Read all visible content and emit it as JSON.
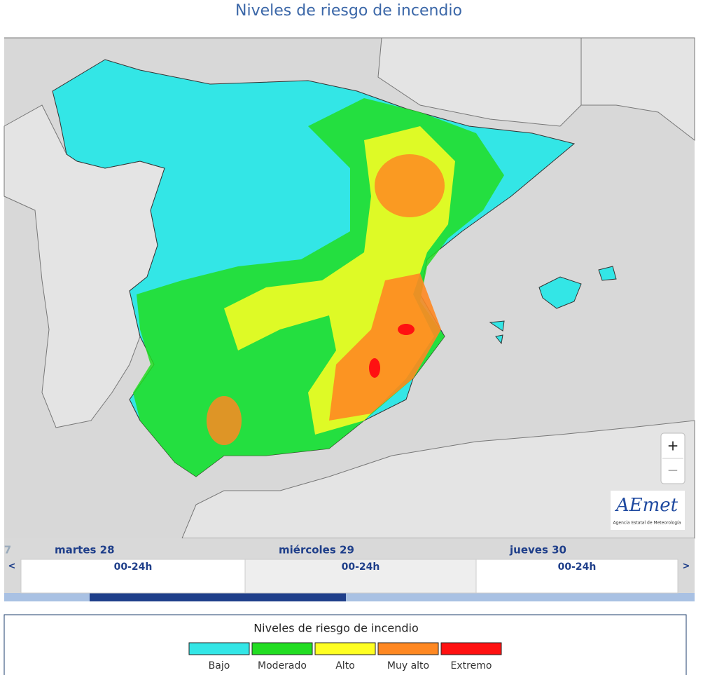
{
  "title": "Niveles de riesgo de incendio",
  "timeline": {
    "prev_day": "7",
    "prev": "<",
    "next": ">",
    "days": [
      {
        "day": "martes 28",
        "period": "00-24h"
      },
      {
        "day": "miércoles 29",
        "period": "00-24h"
      },
      {
        "day": "jueves 30",
        "period": "00-24h"
      }
    ]
  },
  "zoom": {
    "in": "+",
    "out": "−"
  },
  "logo": {
    "brand": "AEmet",
    "subtitle": "Agencia Estatal de Meteorología"
  },
  "legend": {
    "title": "Niveles de riesgo de incendio",
    "items": [
      {
        "label": "Bajo",
        "color": "#33e6e6"
      },
      {
        "label": "Moderado",
        "color": "#22dd22"
      },
      {
        "label": "Alto",
        "color": "#ffff22"
      },
      {
        "label": "Muy alto",
        "color": "#ff8822"
      },
      {
        "label": "Extremo",
        "color": "#ff1111"
      }
    ]
  }
}
